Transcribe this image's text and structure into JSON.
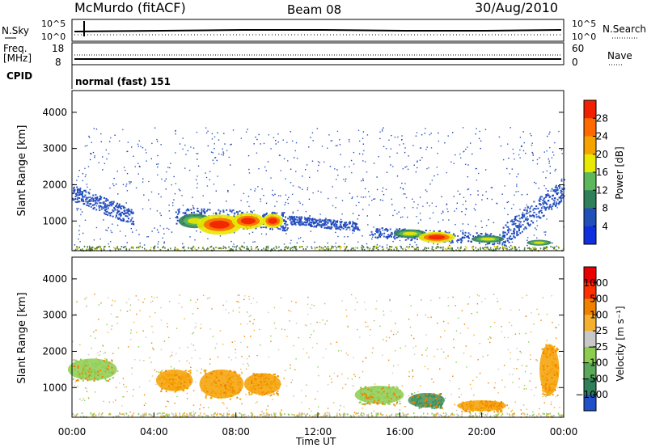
{
  "header": {
    "station": "McMurdo (fitACF)",
    "beam": "Beam 08",
    "date": "30/Aug/2010"
  },
  "chart_data": [
    {
      "type": "line",
      "panel": "noise",
      "left_label": "N.Sky",
      "right_label": "N.Search",
      "left_ticks": [
        "10^5",
        "10^0"
      ],
      "right_ticks": [
        "10^5",
        "10^0"
      ]
    },
    {
      "type": "line",
      "panel": "frequency",
      "left_label_lines": [
        "Freq.",
        "[MHz]"
      ],
      "right_label": "Nave",
      "left_ticks": [
        18,
        8
      ],
      "right_ticks": [
        60,
        0
      ],
      "freq_mhz_approx": 10.5,
      "nave_approx": 30
    },
    {
      "type": "table",
      "panel": "cpid",
      "label": "CPID",
      "value": "normal (fast) 151"
    },
    {
      "type": "heatmap",
      "panel": "power",
      "ylabel": "Slant Range [km]",
      "yticks": [
        1000,
        2000,
        3000,
        4000
      ],
      "ylim": [
        180,
        4600
      ],
      "xlim_hours": [
        0,
        24
      ],
      "colorbar": {
        "label": "Power [dB]",
        "ticks": [
          "28",
          "24",
          "20",
          "16",
          "12",
          "8",
          "4"
        ],
        "colors": [
          "#1030e0",
          "#2050b8",
          "#2f7f5a",
          "#5cb85a",
          "#e8e800",
          "#f5a300",
          "#ff6a00",
          "#f02000"
        ]
      },
      "scatter_bands": [
        {
          "t0": 0,
          "t1": 3.0,
          "r_start": 1800,
          "r_end": 1100,
          "width": 220
        },
        {
          "t0": 5.0,
          "t1": 10.5,
          "r_start": 1150,
          "r_end": 1000,
          "width": 250
        },
        {
          "t0": 10.5,
          "t1": 14.0,
          "r_start": 1050,
          "r_end": 850,
          "width": 120
        },
        {
          "t0": 14.5,
          "t1": 21.0,
          "r_start": 700,
          "r_end": 500,
          "width": 150
        },
        {
          "t0": 21.0,
          "t1": 24.0,
          "r_start": 600,
          "r_end": 1900,
          "width": 300
        }
      ],
      "echo_patches": [
        {
          "t": 6.0,
          "r": 1000,
          "dt": 0.8,
          "dr": 200,
          "level": "mid"
        },
        {
          "t": 7.2,
          "r": 900,
          "dt": 1.1,
          "dr": 280,
          "level": "high"
        },
        {
          "t": 8.6,
          "r": 1000,
          "dt": 0.8,
          "dr": 220,
          "level": "high"
        },
        {
          "t": 9.8,
          "r": 1000,
          "dt": 0.5,
          "dr": 200,
          "level": "high"
        },
        {
          "t": 16.5,
          "r": 650,
          "dt": 0.8,
          "dr": 120,
          "level": "mid"
        },
        {
          "t": 17.8,
          "r": 550,
          "dt": 0.9,
          "dr": 150,
          "level": "high"
        },
        {
          "t": 20.3,
          "r": 500,
          "dt": 0.8,
          "dr": 100,
          "level": "mid"
        },
        {
          "t": 22.8,
          "r": 400,
          "dt": 0.6,
          "dr": 80,
          "level": "mid"
        }
      ]
    },
    {
      "type": "heatmap",
      "panel": "velocity",
      "ylabel": "Slant Range [km]",
      "yticks": [
        1000,
        2000,
        3000,
        4000
      ],
      "ylim": [
        180,
        4600
      ],
      "xlabel": "Time UT",
      "xticks": [
        "00:00",
        "04:00",
        "08:00",
        "12:00",
        "16:00",
        "20:00",
        "00:00"
      ],
      "xlim_hours": [
        0,
        24
      ],
      "colorbar": {
        "label": "Velocity [m s⁻¹]",
        "ticks": [
          "1000",
          "500",
          "100",
          "25",
          "−25",
          "−100",
          "−500",
          "−1000"
        ],
        "colors": [
          "#2050c8",
          "#2f7f5a",
          "#5aa85a",
          "#8ccc50",
          "#c8c8c8",
          "#f5b030",
          "#f08000",
          "#ff3000",
          "#e80000"
        ]
      },
      "echo_patches": [
        {
          "t": 1.0,
          "r": 1500,
          "dt": 2.0,
          "dr": 300,
          "vel": "green"
        },
        {
          "t": 5.0,
          "r": 1200,
          "dt": 1.5,
          "dr": 300,
          "vel": "orange"
        },
        {
          "t": 7.3,
          "r": 1100,
          "dt": 1.8,
          "dr": 400,
          "vel": "orange"
        },
        {
          "t": 9.3,
          "r": 1100,
          "dt": 1.5,
          "dr": 300,
          "vel": "orange"
        },
        {
          "t": 15.0,
          "r": 800,
          "dt": 2.0,
          "dr": 250,
          "vel": "green"
        },
        {
          "t": 17.3,
          "r": 650,
          "dt": 1.5,
          "dr": 200,
          "vel": "darkgreen"
        },
        {
          "t": 20.0,
          "r": 500,
          "dt": 2.0,
          "dr": 150,
          "vel": "orange"
        },
        {
          "t": 23.3,
          "r": 1500,
          "dt": 0.8,
          "dr": 700,
          "vel": "orange"
        }
      ]
    }
  ]
}
